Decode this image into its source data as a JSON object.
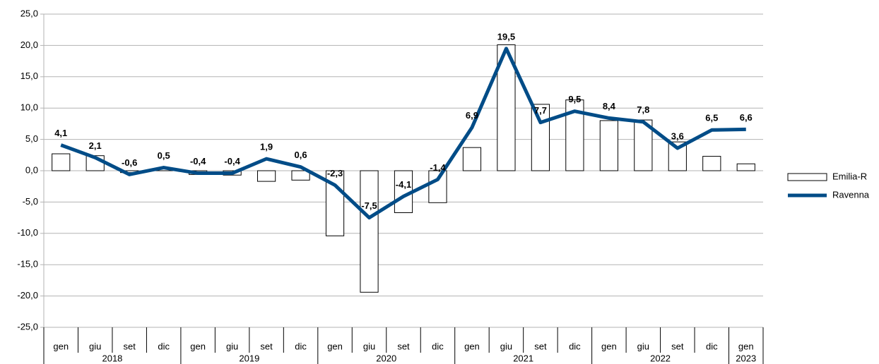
{
  "chart_data": {
    "type": "combo",
    "groups": [
      {
        "label": "2018",
        "categories": [
          "gen",
          "giu",
          "set",
          "dic"
        ]
      },
      {
        "label": "2019",
        "categories": [
          "gen",
          "giu",
          "set",
          "dic"
        ]
      },
      {
        "label": "2020",
        "categories": [
          "gen",
          "giu",
          "set",
          "dic"
        ]
      },
      {
        "label": "2021",
        "categories": [
          "gen",
          "giu",
          "set",
          "dic"
        ]
      },
      {
        "label": "2022",
        "categories": [
          "gen",
          "giu",
          "set",
          "dic"
        ]
      },
      {
        "label": "2023",
        "categories": [
          "gen"
        ]
      }
    ],
    "series": [
      {
        "name": "Emilia-R",
        "type": "bar",
        "color": "#ffffff",
        "values": [
          2.7,
          2.4,
          -0.3,
          0.3,
          -0.6,
          -0.7,
          -1.7,
          -1.5,
          -10.4,
          -19.4,
          -6.7,
          -5.1,
          3.7,
          20.1,
          10.6,
          11.3,
          8.0,
          8.1,
          4.6,
          2.3,
          1.1
        ]
      },
      {
        "name": "Ravenna",
        "type": "line",
        "color": "#004c87",
        "values": [
          4.1,
          2.1,
          -0.6,
          0.5,
          -0.4,
          -0.4,
          1.9,
          0.6,
          -2.3,
          -7.5,
          -4.1,
          -1.4,
          6.9,
          19.5,
          7.7,
          9.5,
          8.4,
          7.8,
          3.6,
          6.5,
          6.6
        ],
        "value_labels": [
          "4,1",
          "2,1",
          "-0,6",
          "0,5",
          "-0,4",
          "-0,4",
          "1,9",
          "0,6",
          "-2,3",
          "-7,5",
          "-4,1",
          "-1,4",
          "6,9",
          "19,5",
          "7,7",
          "9,5",
          "8,4",
          "7,8",
          "3,6",
          "6,5",
          "6,6"
        ]
      }
    ],
    "ylim": [
      -25,
      25
    ],
    "yticks": [
      {
        "value": -25,
        "label": "-25,0"
      },
      {
        "value": -20,
        "label": "-20,0"
      },
      {
        "value": -15,
        "label": "-15,0"
      },
      {
        "value": -10,
        "label": "-10,0"
      },
      {
        "value": -5,
        "label": "-5,0"
      },
      {
        "value": 0,
        "label": "0,0"
      },
      {
        "value": 5,
        "label": "5,0"
      },
      {
        "value": 10,
        "label": "10,0"
      },
      {
        "value": 15,
        "label": "15,0"
      },
      {
        "value": 20,
        "label": "20,0"
      },
      {
        "value": 25,
        "label": "25,0"
      }
    ],
    "grid": true,
    "legend": "right"
  }
}
